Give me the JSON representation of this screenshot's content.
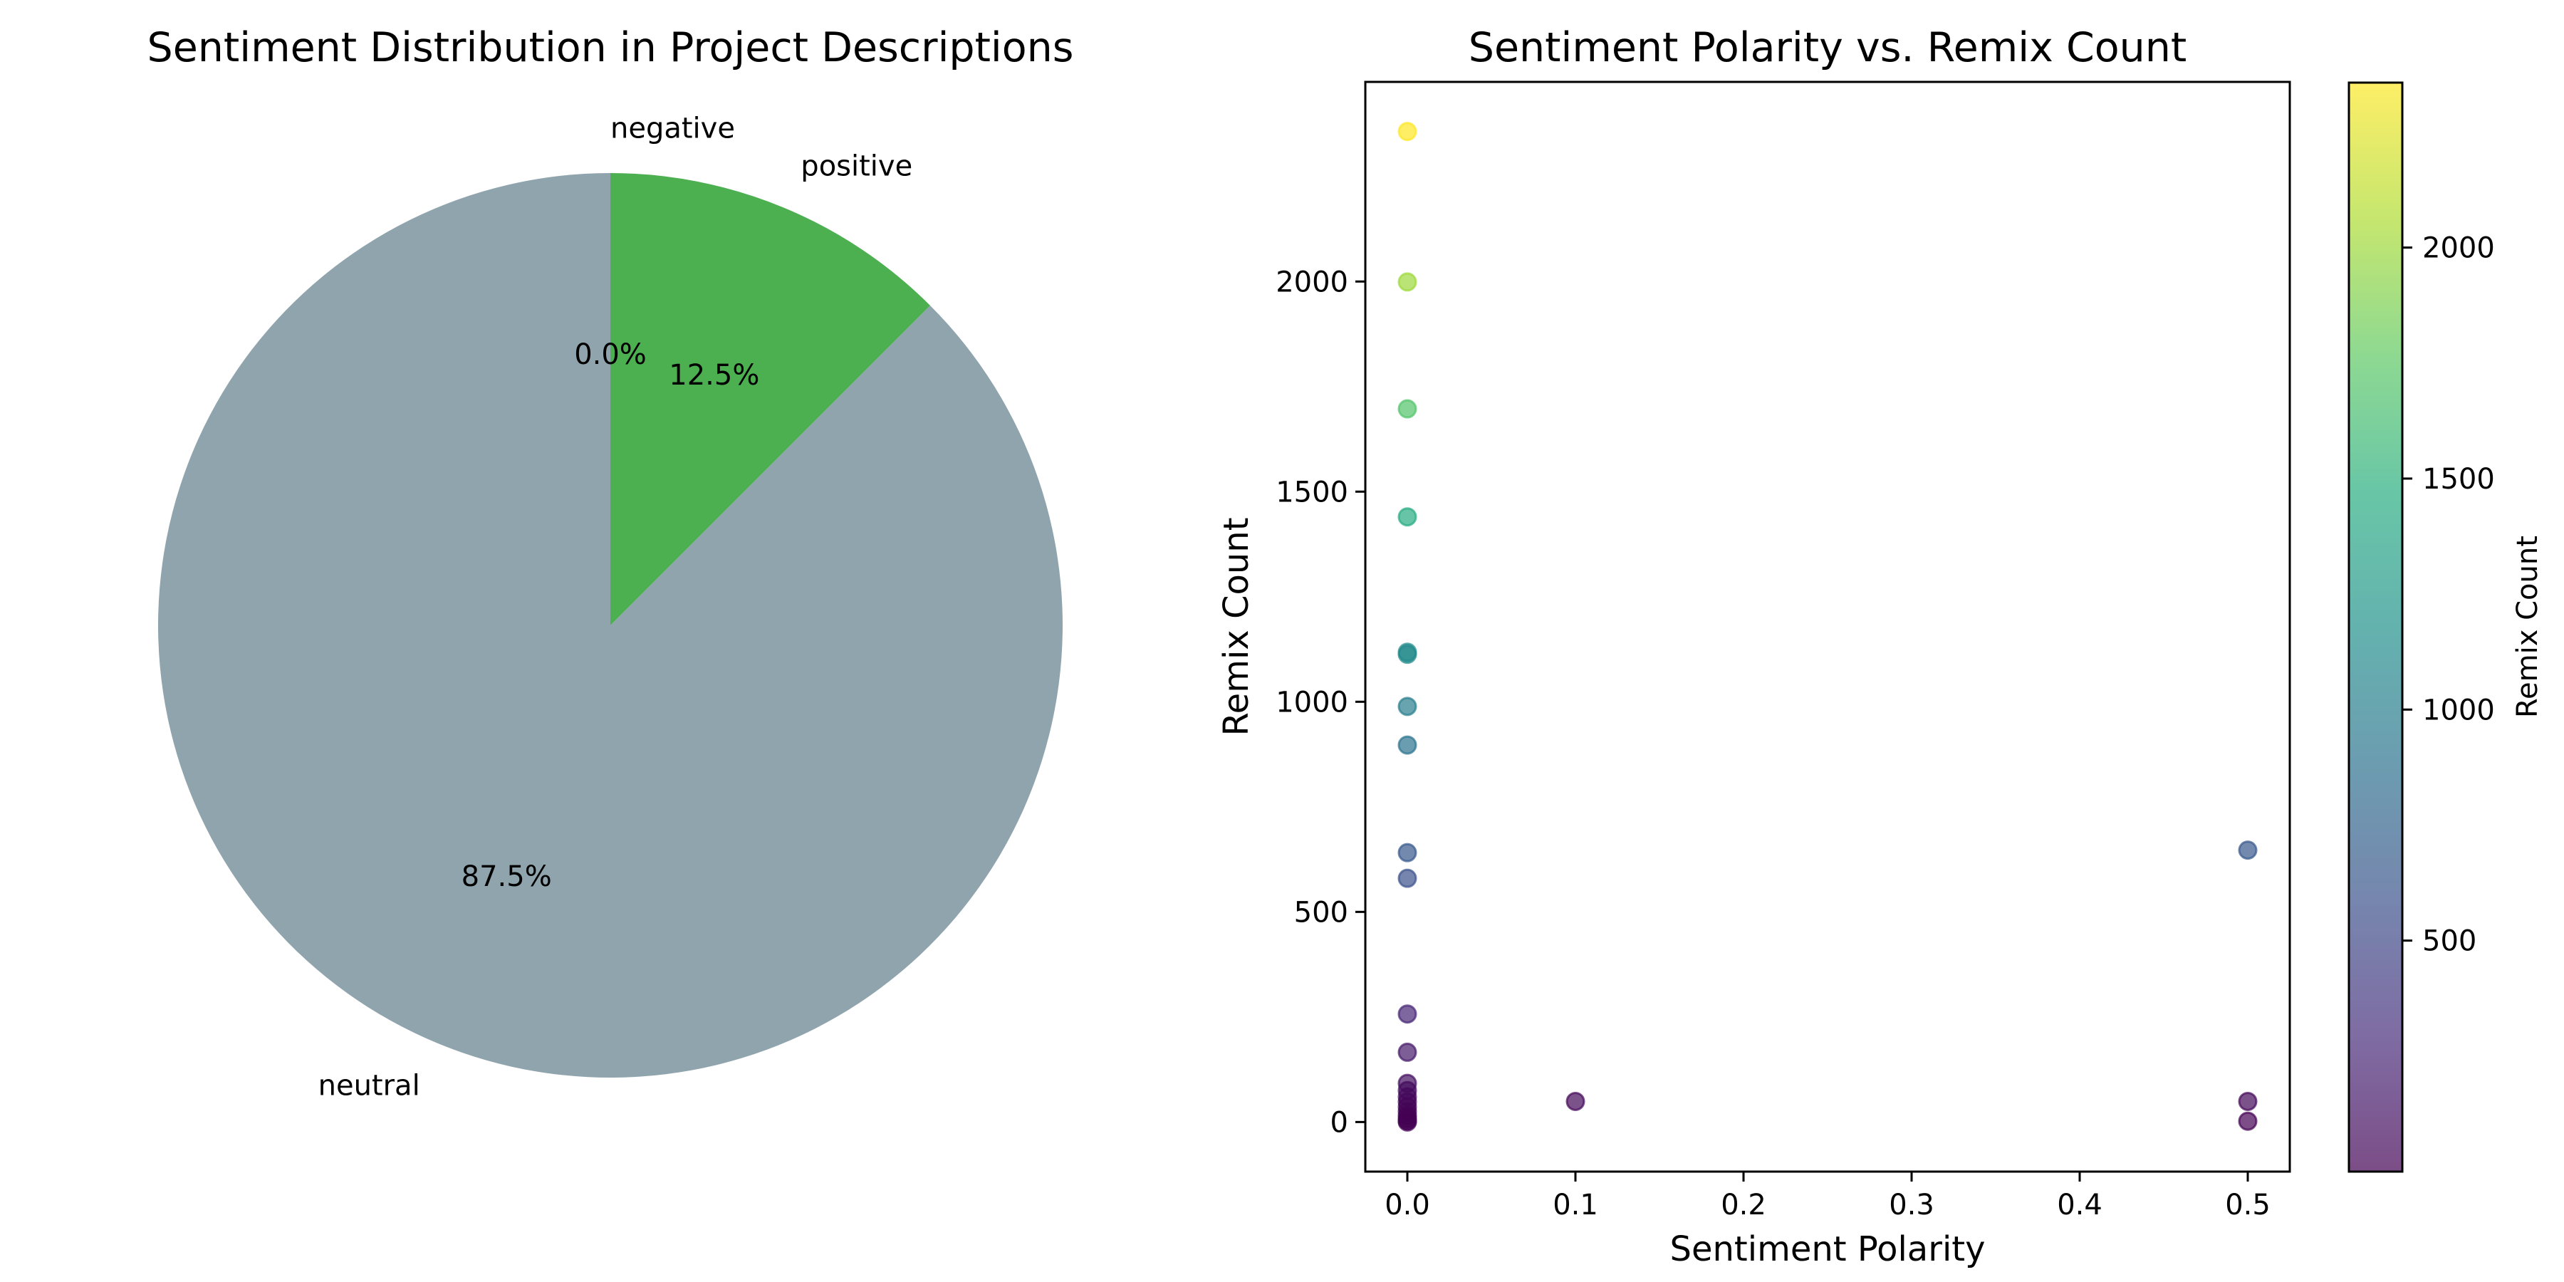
{
  "chart_data": [
    {
      "type": "pie",
      "title": "Sentiment Distribution in Project Descriptions",
      "slices": [
        {
          "label": "neutral",
          "value": 87.5,
          "pct_label": "87.5%",
          "color": "#90a4ae"
        },
        {
          "label": "positive",
          "value": 12.5,
          "pct_label": "12.5%",
          "color": "#4caf50"
        },
        {
          "label": "negative",
          "value": 0.0,
          "pct_label": "0.0%",
          "color": "#f44336"
        }
      ],
      "start_angle_deg": 90,
      "counterclockwise": true
    },
    {
      "type": "scatter",
      "title": "Sentiment Polarity vs. Remix Count",
      "xlabel": "Sentiment Polarity",
      "ylabel": "Remix Count",
      "xlim": [
        -0.025,
        0.525
      ],
      "ylim": [
        -118,
        2475
      ],
      "xticks": [
        0.0,
        0.1,
        0.2,
        0.3,
        0.4,
        0.5
      ],
      "xtick_labels": [
        "0.0",
        "0.1",
        "0.2",
        "0.3",
        "0.4",
        "0.5"
      ],
      "yticks": [
        0,
        500,
        1000,
        1500,
        2000
      ],
      "ytick_labels": [
        "0",
        "500",
        "1000",
        "1500",
        "2000"
      ],
      "color_by": "y",
      "colormap": "viridis",
      "alpha": 0.7,
      "grid": false,
      "colorbar": {
        "label": "Remix Count",
        "range": [
          0,
          2357
        ],
        "ticks": [
          500,
          1000,
          1500,
          2000
        ],
        "tick_labels": [
          "500",
          "1000",
          "1500",
          "2000"
        ]
      },
      "points": [
        {
          "x": 0.0,
          "y": 2357
        },
        {
          "x": 0.0,
          "y": 1999
        },
        {
          "x": 0.0,
          "y": 1697
        },
        {
          "x": 0.0,
          "y": 1440
        },
        {
          "x": 0.0,
          "y": 1118
        },
        {
          "x": 0.0,
          "y": 1113
        },
        {
          "x": 0.0,
          "y": 989
        },
        {
          "x": 0.0,
          "y": 897
        },
        {
          "x": 0.0,
          "y": 641
        },
        {
          "x": 0.0,
          "y": 580
        },
        {
          "x": 0.0,
          "y": 257
        },
        {
          "x": 0.0,
          "y": 166
        },
        {
          "x": 0.0,
          "y": 92
        },
        {
          "x": 0.0,
          "y": 75
        },
        {
          "x": 0.0,
          "y": 60
        },
        {
          "x": 0.0,
          "y": 48
        },
        {
          "x": 0.0,
          "y": 36
        },
        {
          "x": 0.0,
          "y": 25
        },
        {
          "x": 0.0,
          "y": 15
        },
        {
          "x": 0.0,
          "y": 8
        },
        {
          "x": 0.0,
          "y": 3
        },
        {
          "x": 0.0,
          "y": 0
        },
        {
          "x": 0.1,
          "y": 49
        },
        {
          "x": 0.5,
          "y": 647
        },
        {
          "x": 0.5,
          "y": 49
        },
        {
          "x": 0.5,
          "y": 2
        }
      ]
    }
  ]
}
